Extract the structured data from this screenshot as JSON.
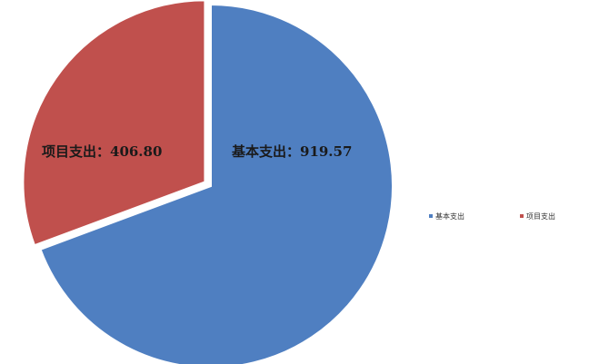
{
  "chart_data": {
    "type": "pie",
    "title": "",
    "series": [
      {
        "values": [
          919.57,
          406.8
        ]
      }
    ],
    "categories": [
      "基本支出",
      "项目支出"
    ],
    "slices": [
      {
        "label": "基本支出",
        "value": 919.57,
        "value_text": "919.57",
        "color": "#4f7fc1"
      },
      {
        "label": "项目支出",
        "value": 406.8,
        "value_text": "406.80",
        "color": "#c0504d"
      }
    ],
    "label_separator": "：",
    "legend": {
      "position": "right",
      "entries": [
        "基本支出",
        "项目支出"
      ]
    },
    "exploded_slice": "项目支出"
  }
}
